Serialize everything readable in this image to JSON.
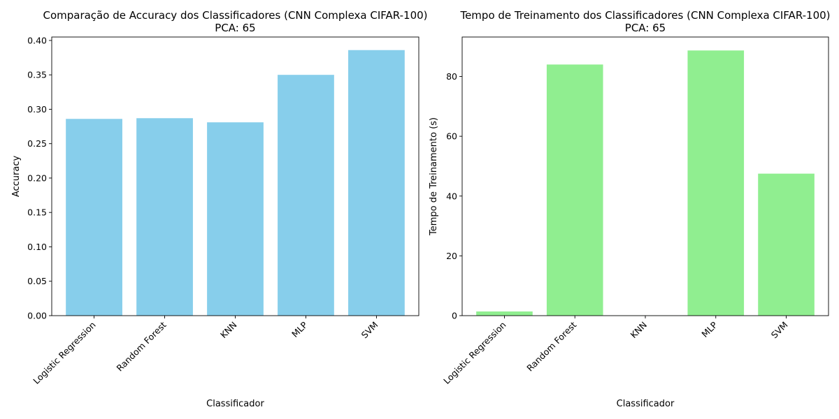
{
  "chart_data": [
    {
      "type": "bar",
      "title": "Comparação de Accuracy dos Classificadores (CNN Complexa CIFAR-100)",
      "subtitle": "PCA: 65",
      "xlabel": "Classificador",
      "ylabel": "Accuracy",
      "categories": [
        "Logistic Regression",
        "Random Forest",
        "KNN",
        "MLP",
        "SVM"
      ],
      "values": [
        0.286,
        0.287,
        0.281,
        0.35,
        0.386
      ],
      "ylim": [
        0,
        0.405
      ],
      "yticks": [
        0.0,
        0.05,
        0.1,
        0.15,
        0.2,
        0.25,
        0.3,
        0.35,
        0.4
      ],
      "ytick_labels": [
        "0.00",
        "0.05",
        "0.10",
        "0.15",
        "0.20",
        "0.25",
        "0.30",
        "0.35",
        "0.40"
      ],
      "bar_color": "#87CEEB",
      "grid": false
    },
    {
      "type": "bar",
      "title": "Tempo de Treinamento dos Classificadores (CNN Complexa CIFAR-100)",
      "subtitle": "PCA: 65",
      "xlabel": "Classificador",
      "ylabel": "Tempo de Treinamento (s)",
      "categories": [
        "Logistic Regression",
        "Random Forest",
        "KNN",
        "MLP",
        "SVM"
      ],
      "values": [
        1.4,
        84.0,
        0.02,
        88.7,
        47.5
      ],
      "ylim": [
        0,
        93.2
      ],
      "yticks": [
        0,
        20,
        40,
        60,
        80
      ],
      "ytick_labels": [
        "0",
        "20",
        "40",
        "60",
        "80"
      ],
      "bar_color": "#90EE90",
      "grid": false
    }
  ]
}
